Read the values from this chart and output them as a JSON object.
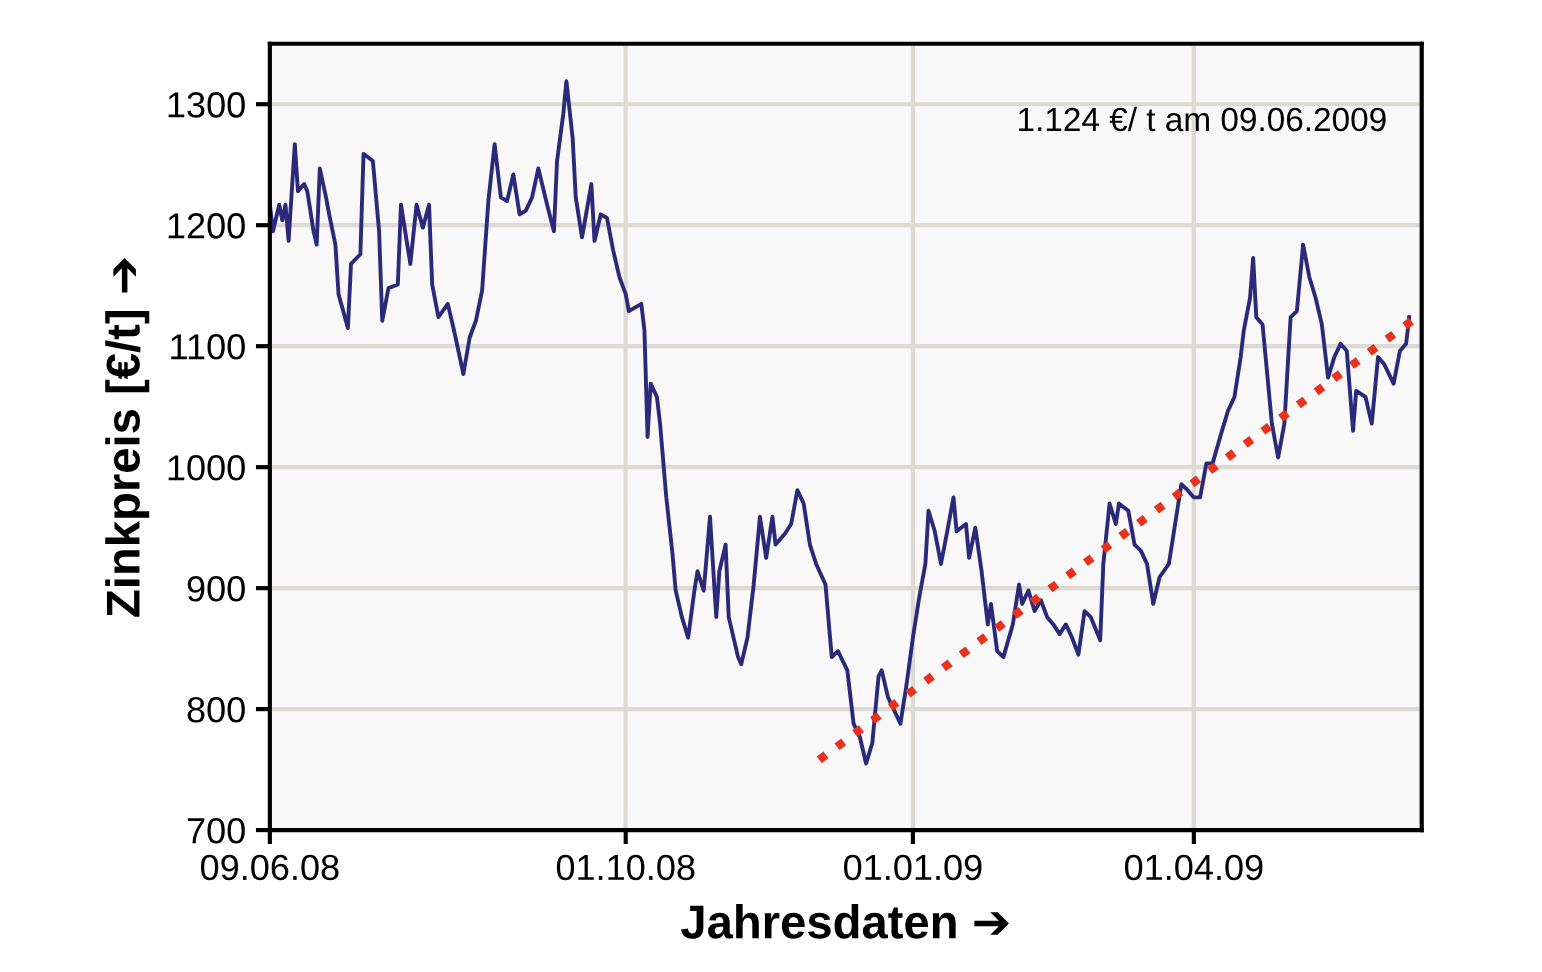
{
  "chart_data": {
    "type": "line",
    "xlabel": "Jahresdaten ➔",
    "ylabel": "Zinkpreis [€/t] ➔",
    "annotations": [
      "1.124 €/ t am 09.06.2009"
    ],
    "xlim": [
      "2008-06-09",
      "2009-06-13"
    ],
    "ylim": [
      700,
      1350
    ],
    "xticks": [
      {
        "value": "2008-06-09",
        "label": "09.06.08"
      },
      {
        "value": "2008-10-01",
        "label": "01.10.08"
      },
      {
        "value": "2009-01-01",
        "label": "01.01.09"
      },
      {
        "value": "2009-04-01",
        "label": "01.04.09"
      }
    ],
    "yticks": [
      700,
      800,
      900,
      1000,
      1100,
      1200,
      1300
    ],
    "grid": true,
    "legend": false,
    "series": [
      {
        "color": "#2b2a7a",
        "line_style": "solid",
        "x": [
          "2008-06-09",
          "2008-06-10",
          "2008-06-12",
          "2008-06-13",
          "2008-06-14",
          "2008-06-15",
          "2008-06-17",
          "2008-06-18",
          "2008-06-20",
          "2008-06-21",
          "2008-06-23",
          "2008-06-24",
          "2008-06-25",
          "2008-06-27",
          "2008-06-28",
          "2008-06-30",
          "2008-07-01",
          "2008-07-04",
          "2008-07-05",
          "2008-07-08",
          "2008-07-09",
          "2008-07-12",
          "2008-07-14",
          "2008-07-15",
          "2008-07-17",
          "2008-07-20",
          "2008-07-21",
          "2008-07-24",
          "2008-07-26",
          "2008-07-28",
          "2008-07-30",
          "2008-07-31",
          "2008-08-02",
          "2008-08-05",
          "2008-08-07",
          "2008-08-10",
          "2008-08-12",
          "2008-08-14",
          "2008-08-16",
          "2008-08-18",
          "2008-08-20",
          "2008-08-22",
          "2008-08-24",
          "2008-08-26",
          "2008-08-28",
          "2008-08-30",
          "2008-09-01",
          "2008-09-03",
          "2008-09-06",
          "2008-09-08",
          "2008-09-09",
          "2008-09-11",
          "2008-09-12",
          "2008-09-14",
          "2008-09-15",
          "2008-09-17",
          "2008-09-20",
          "2008-09-21",
          "2008-09-23",
          "2008-09-25",
          "2008-09-27",
          "2008-09-29",
          "2008-10-01",
          "2008-10-02",
          "2008-10-06",
          "2008-10-07",
          "2008-10-08",
          "2008-10-09",
          "2008-10-11",
          "2008-10-12",
          "2008-10-14",
          "2008-10-16",
          "2008-10-17",
          "2008-10-19",
          "2008-10-21",
          "2008-10-23",
          "2008-10-24",
          "2008-10-26",
          "2008-10-28",
          "2008-10-30",
          "2008-10-31",
          "2008-11-02",
          "2008-11-03",
          "2008-11-06",
          "2008-11-07",
          "2008-11-09",
          "2008-11-11",
          "2008-11-13",
          "2008-11-15",
          "2008-11-17",
          "2008-11-18",
          "2008-11-21",
          "2008-11-23",
          "2008-11-25",
          "2008-11-27",
          "2008-11-29",
          "2008-12-01",
          "2008-12-04",
          "2008-12-06",
          "2008-12-08",
          "2008-12-11",
          "2008-12-13",
          "2008-12-15",
          "2008-12-17",
          "2008-12-19",
          "2008-12-21",
          "2008-12-22",
          "2008-12-24",
          "2008-12-26",
          "2008-12-28",
          "2008-12-30",
          "2009-01-01",
          "2009-01-03",
          "2009-01-05",
          "2009-01-06",
          "2009-01-08",
          "2009-01-10",
          "2009-01-12",
          "2009-01-14",
          "2009-01-15",
          "2009-01-18",
          "2009-01-19",
          "2009-01-21",
          "2009-01-23",
          "2009-01-25",
          "2009-01-26",
          "2009-01-28",
          "2009-01-30",
          "2009-02-02",
          "2009-02-04",
          "2009-02-05",
          "2009-02-07",
          "2009-02-09",
          "2009-02-11",
          "2009-02-13",
          "2009-02-15",
          "2009-02-17",
          "2009-02-19",
          "2009-02-21",
          "2009-02-23",
          "2009-02-25",
          "2009-02-27",
          "2009-03-02",
          "2009-03-03",
          "2009-03-05",
          "2009-03-07",
          "2009-03-08",
          "2009-03-11",
          "2009-03-13",
          "2009-03-15",
          "2009-03-17",
          "2009-03-19",
          "2009-03-21",
          "2009-03-24",
          "2009-03-26",
          "2009-03-28",
          "2009-03-30",
          "2009-04-01",
          "2009-04-03",
          "2009-04-05",
          "2009-04-07",
          "2009-04-10",
          "2009-04-12",
          "2009-04-14",
          "2009-04-16",
          "2009-04-17",
          "2009-04-19",
          "2009-04-20",
          "2009-04-21",
          "2009-04-23",
          "2009-04-26",
          "2009-04-28",
          "2009-04-30",
          "2009-05-02",
          "2009-05-04",
          "2009-05-06",
          "2009-05-08",
          "2009-05-10",
          "2009-05-12",
          "2009-05-14",
          "2009-05-16",
          "2009-05-18",
          "2009-05-20",
          "2009-05-22",
          "2009-05-23",
          "2009-05-26",
          "2009-05-28",
          "2009-05-30",
          "2009-06-01",
          "2009-06-04",
          "2009-06-06",
          "2009-06-08",
          "2009-06-09"
        ],
        "values": [
          1217,
          1195,
          1217,
          1204,
          1217,
          1187,
          1267,
          1228,
          1234,
          1228,
          1195,
          1184,
          1247,
          1223,
          1209,
          1184,
          1143,
          1115,
          1168,
          1176,
          1259,
          1253,
          1195,
          1121,
          1148,
          1151,
          1217,
          1168,
          1217,
          1198,
          1217,
          1151,
          1124,
          1135,
          1113,
          1077,
          1107,
          1121,
          1146,
          1220,
          1267,
          1223,
          1220,
          1242,
          1209,
          1212,
          1223,
          1247,
          1215,
          1195,
          1253,
          1292,
          1319,
          1272,
          1223,
          1190,
          1234,
          1187,
          1209,
          1206,
          1179,
          1157,
          1143,
          1129,
          1135,
          1113,
          1025,
          1069,
          1058,
          1036,
          975,
          928,
          898,
          876,
          859,
          898,
          914,
          898,
          959,
          876,
          914,
          936,
          876,
          843,
          837,
          859,
          903,
          959,
          925,
          959,
          936,
          945,
          953,
          981,
          970,
          936,
          920,
          903,
          843,
          848,
          832,
          788,
          777,
          755,
          772,
          827,
          832,
          810,
          799,
          788,
          821,
          859,
          892,
          920,
          964,
          947,
          920,
          947,
          975,
          947,
          953,
          925,
          950,
          914,
          870,
          887,
          848,
          843,
          870,
          903,
          887,
          898,
          881,
          890,
          876,
          870,
          862,
          870,
          859,
          845,
          881,
          876,
          857,
          920,
          970,
          953,
          970,
          964,
          936,
          931,
          920,
          887,
          909,
          920,
          953,
          986,
          981,
          975,
          975,
          1003,
          1003,
          1030,
          1047,
          1058,
          1091,
          1113,
          1140,
          1173,
          1124,
          1118,
          1036,
          1008,
          1036,
          1124,
          1129,
          1184,
          1157,
          1140,
          1118,
          1074,
          1091,
          1102,
          1096,
          1030,
          1063,
          1058,
          1036,
          1091,
          1085,
          1069,
          1096,
          1102,
          1124
        ]
      },
      {
        "type": "line",
        "color": "#e8321e",
        "line_style": "dotted",
        "x": [
          "2008-12-02",
          "2009-06-13"
        ],
        "values": [
          758,
          1127
        ]
      }
    ]
  }
}
